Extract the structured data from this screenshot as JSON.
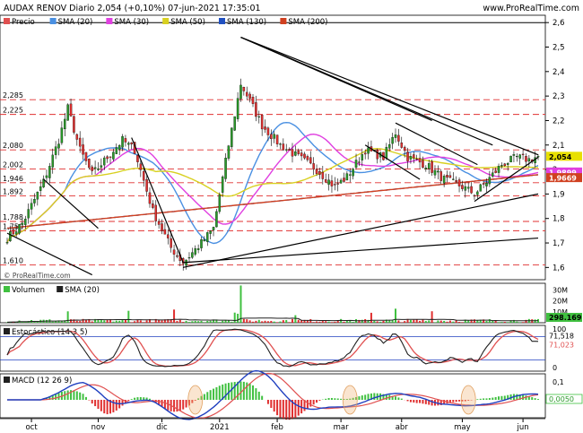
{
  "header": {
    "title": "AUDAX RENOV Diario 2,054 (+0,10%) 07-jun-2021 17:35:01",
    "watermark": "© ProRealTime.com",
    "site": "www.ProRealTime.com"
  },
  "chart_data": [
    {
      "type": "candlestick",
      "panel": "price",
      "legend": [
        {
          "label": "Precio",
          "color": "#e05050"
        },
        {
          "label": "SMA (20)",
          "color": "#4a90e2"
        },
        {
          "label": "SMA (30)",
          "color": "#e040e0"
        },
        {
          "label": "SMA (50)",
          "color": "#d8d020"
        },
        {
          "label": "SMA (130)",
          "color": "#2050c0"
        },
        {
          "label": "SMA (200)",
          "color": "#d04020"
        }
      ],
      "y_ticks": [
        "2,6",
        "2,5",
        "2,4",
        "2,3",
        "2,2",
        "2,1",
        "2",
        "1,9",
        "1,8",
        "1,7",
        "1,6"
      ],
      "ylim": [
        1.55,
        2.63
      ],
      "dashed_levels": [
        {
          "value": 2.285,
          "label": "2,285"
        },
        {
          "value": 2.225,
          "label": "2,225"
        },
        {
          "value": 2.08,
          "label": "2,080"
        },
        {
          "value": 2.002,
          "label": "2,002"
        },
        {
          "value": 1.946,
          "label": "1,946"
        },
        {
          "value": 1.892,
          "label": "1,892"
        },
        {
          "value": 1.788,
          "label": "1,788"
        },
        {
          "value": 1.75,
          "label": "1,750"
        },
        {
          "value": 1.61,
          "label": "1,610"
        }
      ],
      "value_tags": [
        {
          "value": 2.054,
          "label": "2,054",
          "color": "#e8e000"
        },
        {
          "value": 1.9899,
          "label": "1,9899",
          "color": "#e040e0"
        },
        {
          "value": 1.9669,
          "label": "1,9669",
          "color": "#d04020"
        }
      ],
      "x_ticks": [
        "oct",
        "nov",
        "dic",
        "2021",
        "feb",
        "mar",
        "abr",
        "may",
        "jun"
      ],
      "key_points": [
        {
          "t": 0,
          "v": 1.72
        },
        {
          "t": 5,
          "v": 1.78
        },
        {
          "t": 12,
          "v": 1.95
        },
        {
          "t": 17,
          "v": 2.12
        },
        {
          "t": 20,
          "v": 2.25
        },
        {
          "t": 24,
          "v": 2.08
        },
        {
          "t": 28,
          "v": 1.98
        },
        {
          "t": 33,
          "v": 2.05
        },
        {
          "t": 38,
          "v": 2.12
        },
        {
          "t": 42,
          "v": 2.08
        },
        {
          "t": 48,
          "v": 1.83
        },
        {
          "t": 54,
          "v": 1.68
        },
        {
          "t": 58,
          "v": 1.62
        },
        {
          "t": 64,
          "v": 1.7
        },
        {
          "t": 68,
          "v": 1.76
        },
        {
          "t": 73,
          "v": 2.1
        },
        {
          "t": 77,
          "v": 2.35
        },
        {
          "t": 80,
          "v": 2.28
        },
        {
          "t": 84,
          "v": 2.18
        },
        {
          "t": 90,
          "v": 2.1
        },
        {
          "t": 96,
          "v": 2.05
        },
        {
          "t": 102,
          "v": 2.0
        },
        {
          "t": 108,
          "v": 1.93
        },
        {
          "t": 112,
          "v": 1.97
        },
        {
          "t": 118,
          "v": 2.08
        },
        {
          "t": 124,
          "v": 2.05
        },
        {
          "t": 128,
          "v": 2.15
        },
        {
          "t": 132,
          "v": 2.05
        },
        {
          "t": 138,
          "v": 2.02
        },
        {
          "t": 144,
          "v": 1.96
        },
        {
          "t": 150,
          "v": 1.93
        },
        {
          "t": 154,
          "v": 1.9
        },
        {
          "t": 158,
          "v": 1.95
        },
        {
          "t": 163,
          "v": 2.02
        },
        {
          "t": 168,
          "v": 2.05
        },
        {
          "t": 172,
          "v": 2.04
        },
        {
          "t": 175,
          "v": 2.054
        }
      ]
    },
    {
      "type": "bar",
      "panel": "volume",
      "legend": [
        {
          "label": "Volumen",
          "color": "#40c040"
        },
        {
          "label": "SMA (20)",
          "color": "#202020"
        }
      ],
      "y_ticks": [
        "30M",
        "20M",
        "10M"
      ],
      "value_tags": [
        {
          "label": "298.169",
          "color": "#40c040"
        }
      ]
    },
    {
      "type": "line",
      "panel": "stochastic",
      "legend": [
        {
          "label": "Estocástico (14 3 5)",
          "color": "#202020"
        }
      ],
      "y_ticks": [
        "100",
        "0"
      ],
      "value_tags": [
        {
          "label": "71,518",
          "color": "#202020"
        },
        {
          "label": "71,023",
          "color": "#e05050"
        }
      ]
    },
    {
      "type": "line",
      "panel": "macd",
      "legend": [
        {
          "label": "MACD (12 26 9)",
          "color": "#202020"
        }
      ],
      "y_ticks": [
        "0,1"
      ],
      "value_tags": [
        {
          "label": "0,0050",
          "color": "#40c040"
        }
      ]
    }
  ]
}
